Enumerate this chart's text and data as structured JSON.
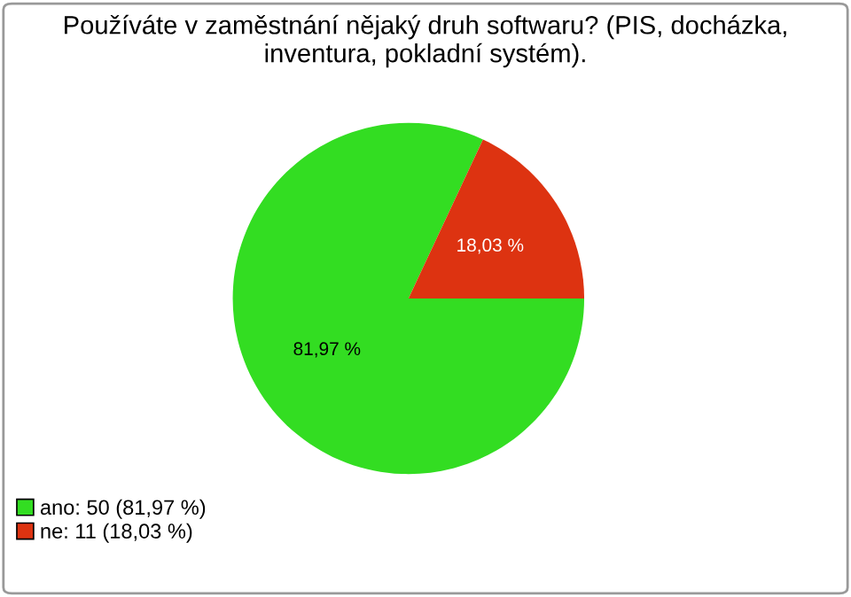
{
  "chart_data": {
    "type": "pie",
    "title": "Používáte v zaměstnání nějaký druh softwaru? (PIS, docházka,\ninventura, pokladní systém).",
    "categories": [
      "ano: 50 (81,97 %)",
      "ne: 11 (18,03 %)"
    ],
    "values": [
      81.97,
      18.03
    ],
    "colors": [
      "#33dd22",
      "#dd3311"
    ],
    "value_labels": [
      "81,97 %",
      "18,03 %"
    ],
    "legend": "bottom left"
  }
}
